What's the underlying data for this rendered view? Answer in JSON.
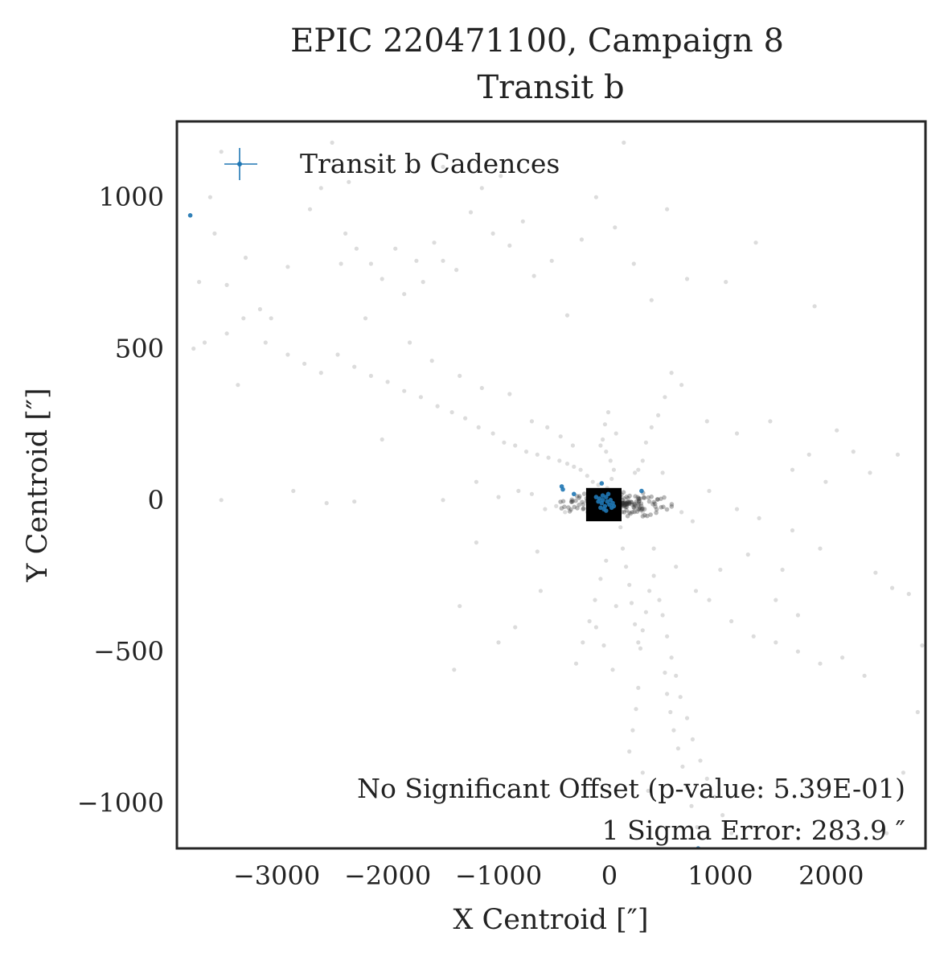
{
  "chart_data": {
    "type": "scatter",
    "title": "EPIC 220471100, Campaign 8",
    "subtitle": "Transit b",
    "xlabel": "X Centroid [″]",
    "ylabel": "Y Centroid [″]",
    "xlim": [
      -3900,
      2850
    ],
    "ylim": [
      -1150,
      1250
    ],
    "xticks": [
      -3000,
      -2000,
      -1000,
      0,
      1000,
      2000
    ],
    "xtick_labels": [
      "−3000",
      "−2000",
      "−1000",
      "0",
      "1000",
      "2000"
    ],
    "yticks": [
      -1000,
      -500,
      0,
      500,
      1000
    ],
    "ytick_labels": [
      "−1000",
      "−500",
      "0",
      "500",
      "1000"
    ],
    "grid": false,
    "legend": {
      "entries": [
        "Transit b Cadences"
      ],
      "placement": "top-left"
    },
    "annotations": [
      "No Significant Offset (p-value: 5.39E-01)",
      "1 Sigma Error: 283.9 ″"
    ],
    "colors": {
      "background_points": "#808080",
      "transit_points": "#1f77b4",
      "offset_marker": "#000000"
    },
    "offset_marker": {
      "x": -50,
      "y": -15,
      "half_width_x": 160,
      "half_height_y": 55
    },
    "series": [
      {
        "name": "",
        "role": "out-of-transit cadences",
        "points": [
          [
            -3780,
            940
          ],
          [
            -3700,
            720
          ],
          [
            -3560,
            880
          ],
          [
            -3450,
            710
          ],
          [
            -3280,
            800
          ],
          [
            -3150,
            630
          ],
          [
            -3050,
            600
          ],
          [
            -2900,
            770
          ],
          [
            -2700,
            960
          ],
          [
            -2600,
            1030
          ],
          [
            -2420,
            780
          ],
          [
            -2380,
            880
          ],
          [
            -2280,
            830
          ],
          [
            -2150,
            780
          ],
          [
            -2050,
            730
          ],
          [
            -1930,
            830
          ],
          [
            -1850,
            680
          ],
          [
            -1740,
            790
          ],
          [
            -1680,
            720
          ],
          [
            -1580,
            850
          ],
          [
            -1500,
            790
          ],
          [
            -1380,
            760
          ],
          [
            -1250,
            950
          ],
          [
            -1150,
            1030
          ],
          [
            -1050,
            880
          ],
          [
            -900,
            840
          ],
          [
            -780,
            920
          ],
          [
            -680,
            740
          ],
          [
            -520,
            790
          ],
          [
            -380,
            610
          ],
          [
            -250,
            860
          ],
          [
            -120,
            1000
          ],
          [
            50,
            900
          ],
          [
            220,
            780
          ],
          [
            380,
            660
          ],
          [
            520,
            960
          ],
          [
            700,
            730
          ],
          [
            1050,
            720
          ],
          [
            1320,
            850
          ],
          [
            1850,
            640
          ],
          [
            -3650,
            520
          ],
          [
            -3450,
            550
          ],
          [
            -3300,
            600
          ],
          [
            -3100,
            520
          ],
          [
            -2900,
            480
          ],
          [
            -2750,
            450
          ],
          [
            -2600,
            420
          ],
          [
            -2450,
            480
          ],
          [
            -2300,
            440
          ],
          [
            -2150,
            410
          ],
          [
            -2000,
            390
          ],
          [
            -1850,
            360
          ],
          [
            -1700,
            340
          ],
          [
            -1550,
            310
          ],
          [
            -1420,
            290
          ],
          [
            -1300,
            270
          ],
          [
            -1180,
            240
          ],
          [
            -1050,
            220
          ],
          [
            -950,
            190
          ],
          [
            -850,
            180
          ],
          [
            -750,
            160
          ],
          [
            -650,
            150
          ],
          [
            -550,
            140
          ],
          [
            -450,
            130
          ],
          [
            -380,
            120
          ],
          [
            -320,
            110
          ],
          [
            -260,
            100
          ],
          [
            -200,
            80
          ],
          [
            -150,
            60
          ],
          [
            -100,
            50
          ],
          [
            -1350,
            410
          ],
          [
            -1150,
            370
          ],
          [
            -900,
            350
          ],
          [
            -700,
            260
          ],
          [
            -560,
            240
          ],
          [
            -440,
            210
          ],
          [
            -330,
            180
          ],
          [
            -1600,
            460
          ],
          [
            -1800,
            520
          ],
          [
            -2200,
            600
          ],
          [
            -3750,
            500
          ],
          [
            -3600,
            1000
          ],
          [
            -3350,
            380
          ],
          [
            -2050,
            200
          ],
          [
            -2350,
            1050
          ],
          [
            -3500,
            1150
          ],
          [
            -2500,
            1180
          ],
          [
            -1500,
            1100
          ],
          [
            -980,
            1070
          ],
          [
            130,
            1180
          ],
          [
            -10,
            290
          ],
          [
            -40,
            250
          ],
          [
            -60,
            200
          ],
          [
            -30,
            160
          ],
          [
            10,
            130
          ],
          [
            40,
            100
          ],
          [
            20,
            70
          ],
          [
            -20,
            40
          ],
          [
            60,
            220
          ],
          [
            -80,
            180
          ],
          [
            100,
            -90
          ],
          [
            120,
            -160
          ],
          [
            150,
            -220
          ],
          [
            180,
            -280
          ],
          [
            200,
            -340
          ],
          [
            230,
            -410
          ],
          [
            260,
            -470
          ],
          [
            280,
            -490
          ],
          [
            300,
            -430
          ],
          [
            330,
            -370
          ],
          [
            360,
            -300
          ],
          [
            400,
            -250
          ],
          [
            450,
            -330
          ],
          [
            480,
            -380
          ],
          [
            520,
            -450
          ],
          [
            560,
            -520
          ],
          [
            600,
            -580
          ],
          [
            640,
            -650
          ],
          [
            700,
            -720
          ],
          [
            750,
            -790
          ],
          [
            820,
            -860
          ],
          [
            880,
            -920
          ],
          [
            950,
            -980
          ],
          [
            1020,
            -1040
          ],
          [
            1100,
            -1100
          ],
          [
            500,
            -570
          ],
          [
            520,
            -640
          ],
          [
            550,
            -700
          ],
          [
            580,
            -760
          ],
          [
            620,
            -820
          ],
          [
            660,
            -880
          ],
          [
            700,
            -950
          ],
          [
            740,
            -1010
          ],
          [
            790,
            -1080
          ],
          [
            260,
            -620
          ],
          [
            240,
            -690
          ],
          [
            210,
            -760
          ],
          [
            180,
            -830
          ],
          [
            300,
            -900
          ],
          [
            350,
            -960
          ],
          [
            -30,
            -200
          ],
          [
            -80,
            -260
          ],
          [
            -130,
            -330
          ],
          [
            -180,
            -400
          ],
          [
            -240,
            -470
          ],
          [
            -300,
            -540
          ],
          [
            -120,
            -420
          ],
          [
            -50,
            -480
          ],
          [
            60,
            -350
          ],
          [
            30,
            -560
          ],
          [
            -620,
            -300
          ],
          [
            -850,
            -420
          ],
          [
            -1000,
            -470
          ],
          [
            -1350,
            -350
          ],
          [
            -1400,
            -560
          ],
          [
            -1200,
            -140
          ],
          [
            -650,
            -170
          ],
          [
            400,
            -160
          ],
          [
            600,
            -220
          ],
          [
            780,
            -300
          ],
          [
            900,
            -330
          ],
          [
            1100,
            -400
          ],
          [
            1300,
            -450
          ],
          [
            1500,
            -470
          ],
          [
            1700,
            -500
          ],
          [
            1900,
            -540
          ],
          [
            2100,
            -520
          ],
          [
            2300,
            -580
          ],
          [
            1700,
            -380
          ],
          [
            1500,
            -330
          ],
          [
            1000,
            -230
          ],
          [
            1250,
            -180
          ],
          [
            1560,
            -230
          ],
          [
            2400,
            -240
          ],
          [
            2550,
            -290
          ],
          [
            2700,
            -310
          ],
          [
            2820,
            -480
          ],
          [
            2780,
            -700
          ],
          [
            2650,
            -900
          ],
          [
            2500,
            -1100
          ],
          [
            1800,
            150
          ],
          [
            2050,
            230
          ],
          [
            2200,
            160
          ],
          [
            2600,
            150
          ],
          [
            2350,
            90
          ],
          [
            1950,
            60
          ],
          [
            1650,
            100
          ],
          [
            1450,
            260
          ],
          [
            1150,
            220
          ],
          [
            880,
            260
          ],
          [
            650,
            380
          ],
          [
            560,
            420
          ],
          [
            500,
            340
          ],
          [
            440,
            280
          ],
          [
            380,
            240
          ],
          [
            330,
            190
          ],
          [
            300,
            130
          ],
          [
            260,
            100
          ],
          [
            230,
            90
          ],
          [
            480,
            90
          ],
          [
            -2550,
            -10
          ],
          [
            -2300,
            -5
          ],
          [
            -1500,
            0
          ],
          [
            -1200,
            60
          ],
          [
            -1000,
            10
          ],
          [
            -820,
            30
          ],
          [
            -700,
            20
          ],
          [
            -580,
            -30
          ],
          [
            -480,
            -20
          ],
          [
            -400,
            -40
          ],
          [
            -3500,
            0
          ],
          [
            -2850,
            30
          ],
          [
            900,
            30
          ],
          [
            1150,
            -30
          ],
          [
            1350,
            -60
          ],
          [
            1650,
            -100
          ],
          [
            1900,
            -160
          ],
          [
            650,
            -40
          ],
          [
            750,
            -70
          ],
          [
            300,
            -40
          ]
        ]
      },
      {
        "name": "Transit b Cadences",
        "points": [
          [
            -3780,
            940
          ],
          [
            -430,
            45
          ],
          [
            -420,
            35
          ],
          [
            -320,
            20
          ],
          [
            -70,
            55
          ],
          [
            290,
            30
          ],
          [
            800,
            -1150
          ],
          [
            -120,
            10
          ],
          [
            -100,
            -5
          ],
          [
            -90,
            5
          ],
          [
            -70,
            -10
          ],
          [
            -60,
            0
          ],
          [
            -40,
            -20
          ],
          [
            -30,
            10
          ],
          [
            -20,
            -5
          ],
          [
            0,
            -15
          ],
          [
            10,
            0
          ],
          [
            20,
            -25
          ],
          [
            -50,
            -30
          ],
          [
            -80,
            -25
          ],
          [
            -10,
            20
          ],
          [
            30,
            -10
          ],
          [
            -60,
            15
          ],
          [
            -30,
            -35
          ],
          [
            40,
            -20
          ]
        ]
      }
    ]
  }
}
